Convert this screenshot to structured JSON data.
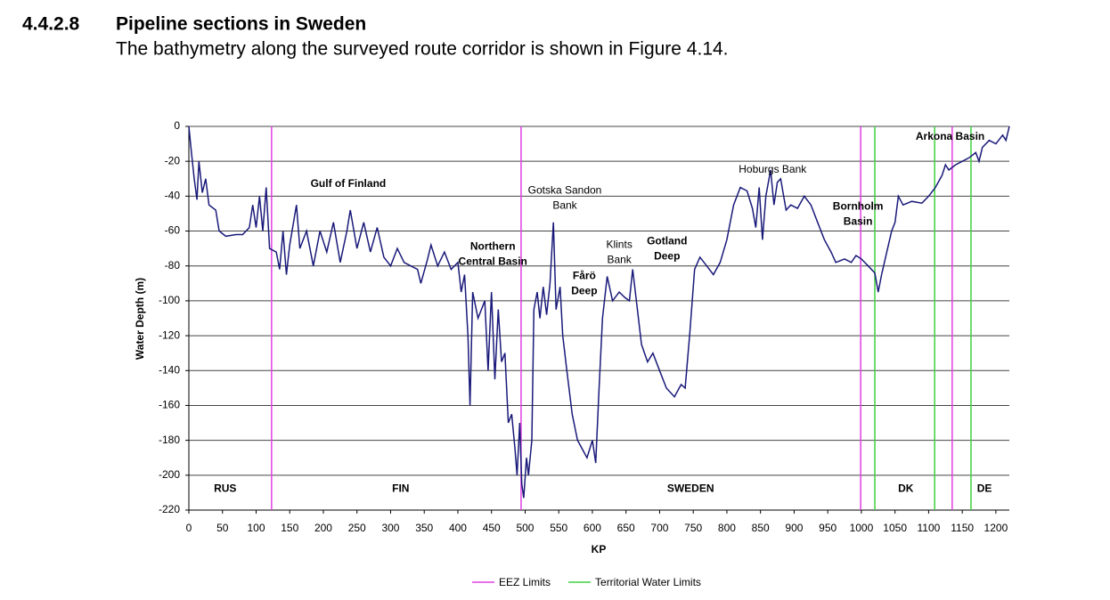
{
  "header": {
    "number": "4.4.2.8",
    "title": "Pipeline sections in Sweden",
    "text": "The bathymetry along the surveyed route corridor is shown in Figure 4.14."
  },
  "chart_data": {
    "type": "line",
    "xlabel": "KP",
    "ylabel": "Water Depth (m)",
    "xlim": [
      0,
      1220
    ],
    "ylim": [
      -220,
      0
    ],
    "xticks": [
      0,
      50,
      100,
      150,
      200,
      250,
      300,
      350,
      400,
      450,
      500,
      550,
      600,
      650,
      700,
      750,
      800,
      850,
      900,
      950,
      1000,
      1050,
      1100,
      1150,
      1200
    ],
    "yticks": [
      0,
      -20,
      -40,
      -60,
      -80,
      -100,
      -120,
      -140,
      -160,
      -180,
      -200,
      -220
    ],
    "grid": true,
    "color": "#1a1a7a",
    "x": [
      0,
      3,
      8,
      12,
      15,
      20,
      25,
      30,
      40,
      45,
      55,
      70,
      80,
      90,
      95,
      100,
      105,
      110,
      115,
      120,
      130,
      135,
      140,
      145,
      150,
      160,
      165,
      175,
      185,
      195,
      205,
      215,
      225,
      235,
      240,
      250,
      260,
      270,
      280,
      290,
      300,
      310,
      320,
      330,
      340,
      345,
      355,
      360,
      370,
      380,
      390,
      400,
      405,
      410,
      415,
      418,
      422,
      430,
      440,
      445,
      450,
      455,
      460,
      465,
      470,
      475,
      480,
      485,
      488,
      492,
      495,
      498,
      502,
      505,
      510,
      513,
      518,
      522,
      527,
      532,
      537,
      542,
      546,
      552,
      556,
      562,
      570,
      578,
      585,
      592,
      600,
      605,
      610,
      615,
      622,
      630,
      640,
      648,
      655,
      660,
      667,
      673,
      682,
      690,
      700,
      710,
      722,
      732,
      738,
      745,
      752,
      760,
      770,
      780,
      790,
      800,
      810,
      820,
      830,
      838,
      843,
      848,
      853,
      858,
      865,
      870,
      875,
      880,
      888,
      895,
      905,
      915,
      925,
      935,
      945,
      955,
      962,
      975,
      985,
      992,
      1000,
      1010,
      1020,
      1025,
      1030,
      1036,
      1045,
      1050,
      1055,
      1062,
      1075,
      1090,
      1100,
      1110,
      1120,
      1125,
      1130,
      1140,
      1150,
      1160,
      1170,
      1175,
      1180,
      1190,
      1200,
      1210,
      1215,
      1220
    ],
    "values": [
      0,
      -12,
      -30,
      -42,
      -20,
      -38,
      -30,
      -45,
      -48,
      -60,
      -63,
      -62,
      -62,
      -58,
      -45,
      -58,
      -40,
      -60,
      -35,
      -70,
      -72,
      -82,
      -60,
      -85,
      -68,
      -45,
      -70,
      -60,
      -80,
      -60,
      -72,
      -55,
      -78,
      -60,
      -48,
      -70,
      -55,
      -72,
      -58,
      -75,
      -80,
      -70,
      -78,
      -80,
      -82,
      -90,
      -76,
      -68,
      -80,
      -72,
      -82,
      -78,
      -95,
      -85,
      -120,
      -160,
      -95,
      -110,
      -100,
      -140,
      -95,
      -145,
      -105,
      -135,
      -130,
      -170,
      -165,
      -185,
      -200,
      -170,
      -205,
      -213,
      -190,
      -200,
      -180,
      -105,
      -95,
      -110,
      -92,
      -108,
      -90,
      -55,
      -105,
      -92,
      -120,
      -140,
      -165,
      -180,
      -185,
      -190,
      -180,
      -193,
      -150,
      -110,
      -86,
      -100,
      -95,
      -98,
      -100,
      -82,
      -105,
      -125,
      -135,
      -130,
      -140,
      -150,
      -155,
      -148,
      -150,
      -118,
      -82,
      -75,
      -80,
      -85,
      -78,
      -65,
      -45,
      -35,
      -37,
      -47,
      -58,
      -35,
      -65,
      -40,
      -25,
      -45,
      -32,
      -30,
      -48,
      -45,
      -47,
      -40,
      -45,
      -55,
      -65,
      -72,
      -78,
      -76,
      -78,
      -74,
      -76,
      -80,
      -84,
      -95,
      -85,
      -75,
      -60,
      -55,
      -40,
      -45,
      -43,
      -44,
      -40,
      -35,
      -28,
      -22,
      -25,
      -22,
      -20,
      -18,
      -15,
      -20,
      -12,
      -8,
      -10,
      -5,
      -8,
      0
    ],
    "limit_lines": [
      {
        "name": "EEZ Limits",
        "color": "#e040e0",
        "x": [
          123,
          494,
          999,
          1135
        ]
      },
      {
        "name": "Territorial Water Limits",
        "color": "#40d040",
        "x": [
          1020,
          1109,
          1163
        ]
      }
    ],
    "regions": [
      {
        "text": "RUS",
        "x": 54,
        "y": -208
      },
      {
        "text": "FIN",
        "x": 315,
        "y": -208
      },
      {
        "text": "SWEDEN",
        "x": 746,
        "y": -208
      },
      {
        "text": "DK",
        "x": 1066,
        "y": -208
      },
      {
        "text": "DE",
        "x": 1183,
        "y": -208
      }
    ],
    "annotations": [
      {
        "text": [
          "Gulf of Finland"
        ],
        "x": 237,
        "y": -33,
        "bold": true
      },
      {
        "text": [
          "Gotska Sandon",
          "Bank"
        ],
        "x": 559,
        "y": -37,
        "bold": false
      },
      {
        "text": [
          "Northern",
          "Central Basin"
        ],
        "x": 452,
        "y": -69,
        "bold": true
      },
      {
        "text": [
          "Klints",
          "Bank"
        ],
        "x": 640,
        "y": -68,
        "bold": false
      },
      {
        "text": [
          "Gotland",
          "Deep"
        ],
        "x": 711,
        "y": -66,
        "bold": true
      },
      {
        "text": [
          "Fårö",
          "Deep"
        ],
        "x": 588,
        "y": -86,
        "bold": true
      },
      {
        "text": [
          "Hoburgs Bank"
        ],
        "x": 868,
        "y": -25,
        "bold": false
      },
      {
        "text": [
          "Bornholm",
          "Basin"
        ],
        "x": 995,
        "y": -46,
        "bold": true
      },
      {
        "text": [
          "Arkona Basin"
        ],
        "x": 1132,
        "y": -6,
        "bold": true
      }
    ]
  }
}
